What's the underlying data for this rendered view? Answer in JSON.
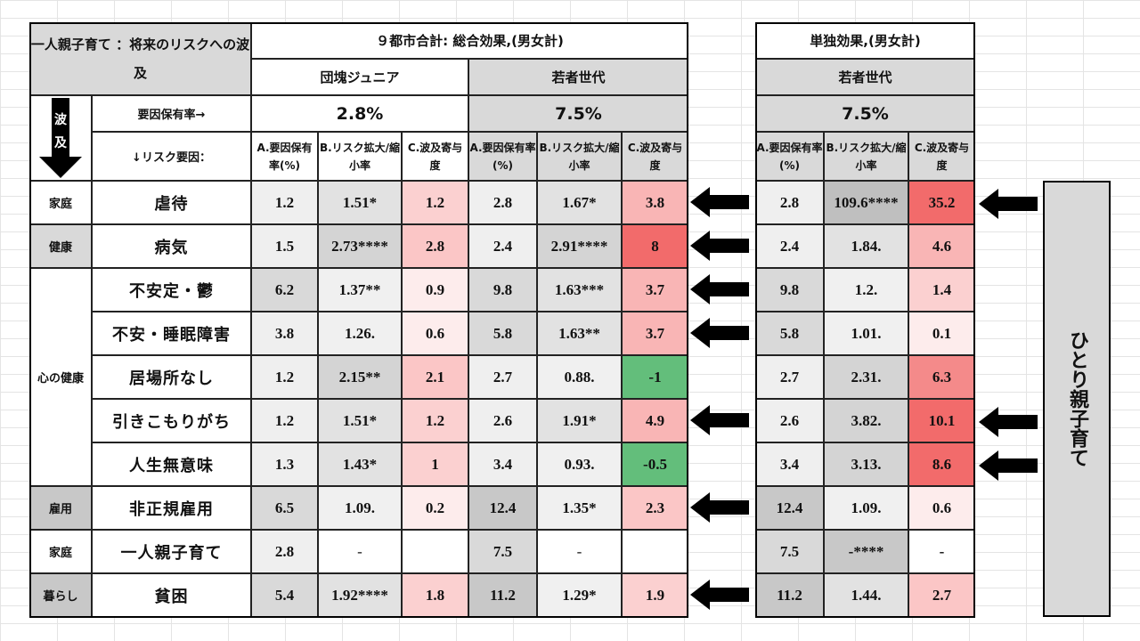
{
  "title": "一人親子育て ：将来のリスクへの波及",
  "group_total": "９都市合計: 総合効果,(男女計)",
  "group_single": "単独効果,(男女計)",
  "gen_junior": "団塊ジュニア",
  "gen_young": "若者世代",
  "gen_young2": "若者世代",
  "row_rate_label": "要因保有率→",
  "rate_junior": "2.8%",
  "rate_young": "7.5%",
  "rate_single": "7.5%",
  "risk_factor_label": "↓リスク要因：",
  "wave_arrow_text": "波及",
  "col_a": "A.要因保有率(%)",
  "col_b": "B.リスク拡大/縮小率",
  "col_c": "C.波及寄与度",
  "side_label": "ひとり親子育て",
  "categories": {
    "family1": "家庭",
    "health": "健康",
    "mind": "心の健康",
    "employ": "雇用",
    "family2": "家庭",
    "living": "暮らし"
  },
  "rows": [
    {
      "risk": "虐待",
      "j": [
        "1.2",
        "1.51*",
        "1.2"
      ],
      "y": [
        "2.8",
        "1.67*",
        "3.8"
      ],
      "s": [
        "2.8",
        "109.6****",
        "35.2"
      ]
    },
    {
      "risk": "病気",
      "j": [
        "1.5",
        "2.73****",
        "2.8"
      ],
      "y": [
        "2.4",
        "2.91****",
        "8"
      ],
      "s": [
        "2.4",
        "1.84.",
        "4.6"
      ]
    },
    {
      "risk": "不安定・鬱",
      "j": [
        "6.2",
        "1.37**",
        "0.9"
      ],
      "y": [
        "9.8",
        "1.63***",
        "3.7"
      ],
      "s": [
        "9.8",
        "1.2.",
        "1.4"
      ]
    },
    {
      "risk": "不安・睡眠障害",
      "j": [
        "3.8",
        "1.26.",
        "0.6"
      ],
      "y": [
        "5.8",
        "1.63**",
        "3.7"
      ],
      "s": [
        "5.8",
        "1.01.",
        "0.1"
      ]
    },
    {
      "risk": "居場所なし",
      "j": [
        "1.2",
        "2.15**",
        "2.1"
      ],
      "y": [
        "2.7",
        "0.88.",
        "-1"
      ],
      "s": [
        "2.7",
        "2.31.",
        "6.3"
      ]
    },
    {
      "risk": "引きこもりがち",
      "j": [
        "1.2",
        "1.51*",
        "1.2"
      ],
      "y": [
        "2.6",
        "1.91*",
        "4.9"
      ],
      "s": [
        "2.6",
        "3.82.",
        "10.1"
      ]
    },
    {
      "risk": "人生無意味",
      "j": [
        "1.3",
        "1.43*",
        "1"
      ],
      "y": [
        "3.4",
        "0.93.",
        "-0.5"
      ],
      "s": [
        "3.4",
        "3.13.",
        "8.6"
      ]
    },
    {
      "risk": "非正規雇用",
      "j": [
        "6.5",
        "1.09.",
        "0.2"
      ],
      "y": [
        "12.4",
        "1.35*",
        "2.3"
      ],
      "s": [
        "12.4",
        "1.09.",
        "0.6"
      ]
    },
    {
      "risk": "一人親子育て",
      "j": [
        "2.8",
        "-",
        ""
      ],
      "y": [
        "7.5",
        "-",
        ""
      ],
      "s": [
        "7.5",
        "-****",
        "-"
      ]
    },
    {
      "risk": "貧困",
      "j": [
        "5.4",
        "1.92****",
        "1.8"
      ],
      "y": [
        "11.2",
        "1.29*",
        "1.9"
      ],
      "s": [
        "11.2",
        "1.44.",
        "2.7"
      ]
    }
  ],
  "colors": {
    "red_strong": "#f26b6b",
    "red_mid": "#f8a8a8",
    "red_light": "#fbd0d0",
    "red_pale": "#fdecec",
    "green": "#63be7b",
    "grey_header": "#d9d9d9"
  }
}
